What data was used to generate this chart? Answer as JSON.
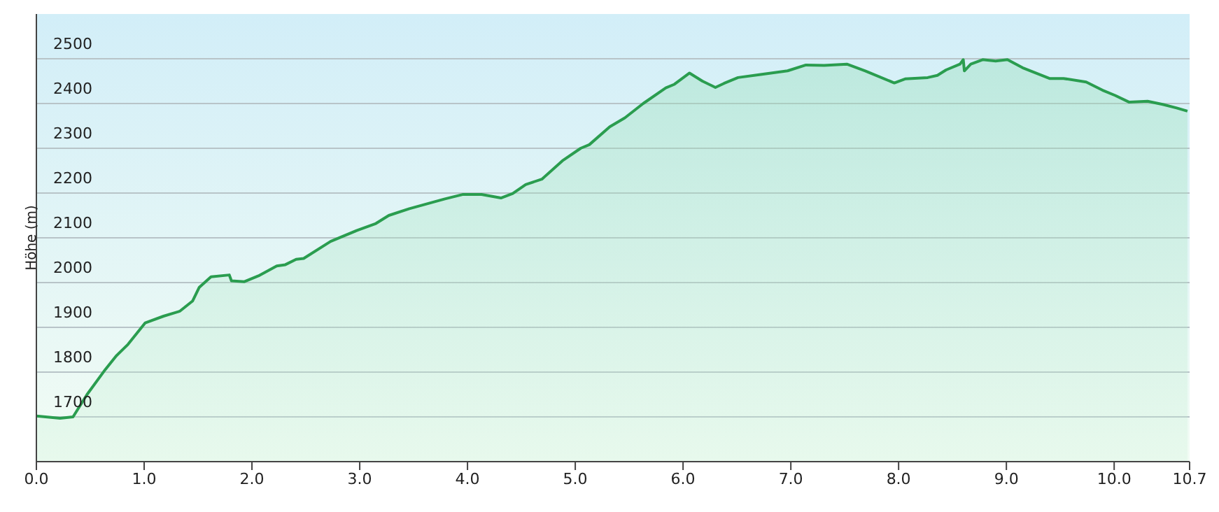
{
  "chart_data": {
    "type": "area",
    "ylabel": "Höhe (m)",
    "x": [
      0,
      0.22,
      0.34,
      0.47,
      0.64,
      0.74,
      0.85,
      1.01,
      1.18,
      1.33,
      1.45,
      1.51,
      1.62,
      1.79,
      1.81,
      1.93,
      2.06,
      2.23,
      2.31,
      2.41,
      2.48,
      2.73,
      2.98,
      3.15,
      3.27,
      3.46,
      3.79,
      3.96,
      4.13,
      4.31,
      4.42,
      4.54,
      4.69,
      4.88,
      5.05,
      5.13,
      5.32,
      5.46,
      5.63,
      5.84,
      5.92,
      6.06,
      6.18,
      6.3,
      6.38,
      6.51,
      6.72,
      6.97,
      7.14,
      7.31,
      7.52,
      7.69,
      7.96,
      8.06,
      8.27,
      8.36,
      8.44,
      8.57,
      8.6,
      8.61,
      8.67,
      8.78,
      8.9,
      9.01,
      9.15,
      9.4,
      9.53,
      9.74,
      9.89,
      10.01,
      10.14,
      10.31,
      10.45,
      10.58,
      10.68
    ],
    "series": [
      {
        "color": "#2a9d4f",
        "values": [
          1702,
          1697,
          1700,
          1750,
          1806,
          1836,
          1862,
          1910,
          1925,
          1936,
          1959,
          1989,
          2013,
          2017,
          2004,
          2002,
          2015,
          2037,
          2040,
          2052,
          2054,
          2092,
          2117,
          2132,
          2150,
          2165,
          2187,
          2197,
          2197,
          2189,
          2199,
          2219,
          2231,
          2272,
          2300,
          2308,
          2348,
          2368,
          2400,
          2435,
          2443,
          2468,
          2450,
          2436,
          2445,
          2458,
          2465,
          2473,
          2486,
          2485,
          2488,
          2473,
          2446,
          2455,
          2458,
          2463,
          2475,
          2488,
          2498,
          2473,
          2488,
          2498,
          2495,
          2498,
          2480,
          2456,
          2456,
          2448,
          2430,
          2418,
          2403,
          2405,
          2398,
          2390,
          2383
        ]
      }
    ],
    "xlim": [
      0,
      10.7
    ],
    "xticks": [
      {
        "value": 0,
        "label": "0.0"
      },
      {
        "value": 1,
        "label": "1.0"
      },
      {
        "value": 2,
        "label": "2.0"
      },
      {
        "value": 3,
        "label": "3.0"
      },
      {
        "value": 4,
        "label": "4.0"
      },
      {
        "value": 5,
        "label": "5.0"
      },
      {
        "value": 6,
        "label": "6.0"
      },
      {
        "value": 7,
        "label": "7.0"
      },
      {
        "value": 8,
        "label": "8.0"
      },
      {
        "value": 9,
        "label": "9.0"
      },
      {
        "value": 10,
        "label": "10.0"
      },
      10.7
    ],
    "ylim": [
      1600,
      2600
    ],
    "yticks": [
      1700,
      1800,
      1900,
      2000,
      2100,
      2200,
      2300,
      2400,
      2500
    ],
    "grid": "y",
    "legend": false,
    "marker": "none",
    "line_style": "solid"
  }
}
